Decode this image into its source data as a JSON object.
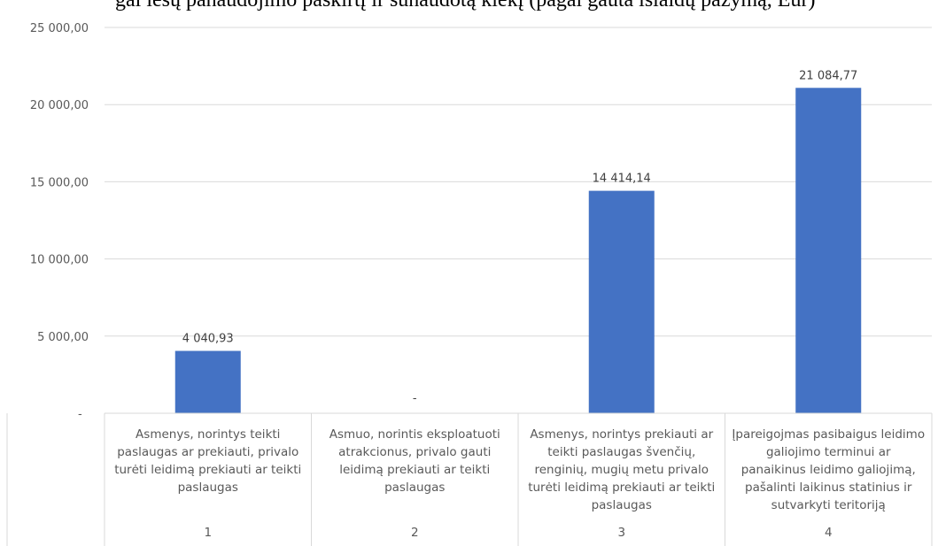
{
  "document": {
    "partial_heading": "gal lėšų panaudojimo paskirtį ir sunaudotą kiekį (pagal gauta išlaidų pažymą, Eur)"
  },
  "chart_data": {
    "type": "bar",
    "categories": [
      "Asmenys, norintys teikti\npaslaugas ar prekiauti, privalo\nturėti leidimą prekiauti ar teikti\npaslaugas",
      "Asmuo, norintis eksploatuoti\natrakcionus, privalo gauti\nleidimą prekiauti ar teikti\npaslaugas",
      "Asmenys, norintys prekiauti ar\nteikti paslaugas švenčių,\nrenginių, mugių metu privalo\nturėti leidimą prekiauti ar teikti\npaslaugas",
      "Įpareigojmas pasibaigus leidimo\ngaliojimo terminui ar\npanaikinus leidimo galiojimą,\npašalinti laikinus statinius ir\nsutvarkyti teritoriją"
    ],
    "category_numbers": [
      "1",
      "2",
      "3",
      "4"
    ],
    "values": [
      4040.93,
      0,
      14414.14,
      21084.77
    ],
    "data_labels": [
      "4 040,93",
      "-",
      "14 414,14",
      "21 084,77"
    ],
    "ylim": [
      0,
      25000
    ],
    "y_ticks": [
      0,
      5000,
      10000,
      15000,
      20000,
      25000
    ],
    "y_tick_labels": [
      "-",
      "5 000,00",
      "10 000,00",
      "15 000,00",
      "20 000,00",
      "25 000,00"
    ],
    "grid": true,
    "bar_color": "#4472c4",
    "grid_color": "#d9d9d9",
    "text_color": "#595959",
    "title": "",
    "xlabel": "",
    "ylabel": ""
  }
}
